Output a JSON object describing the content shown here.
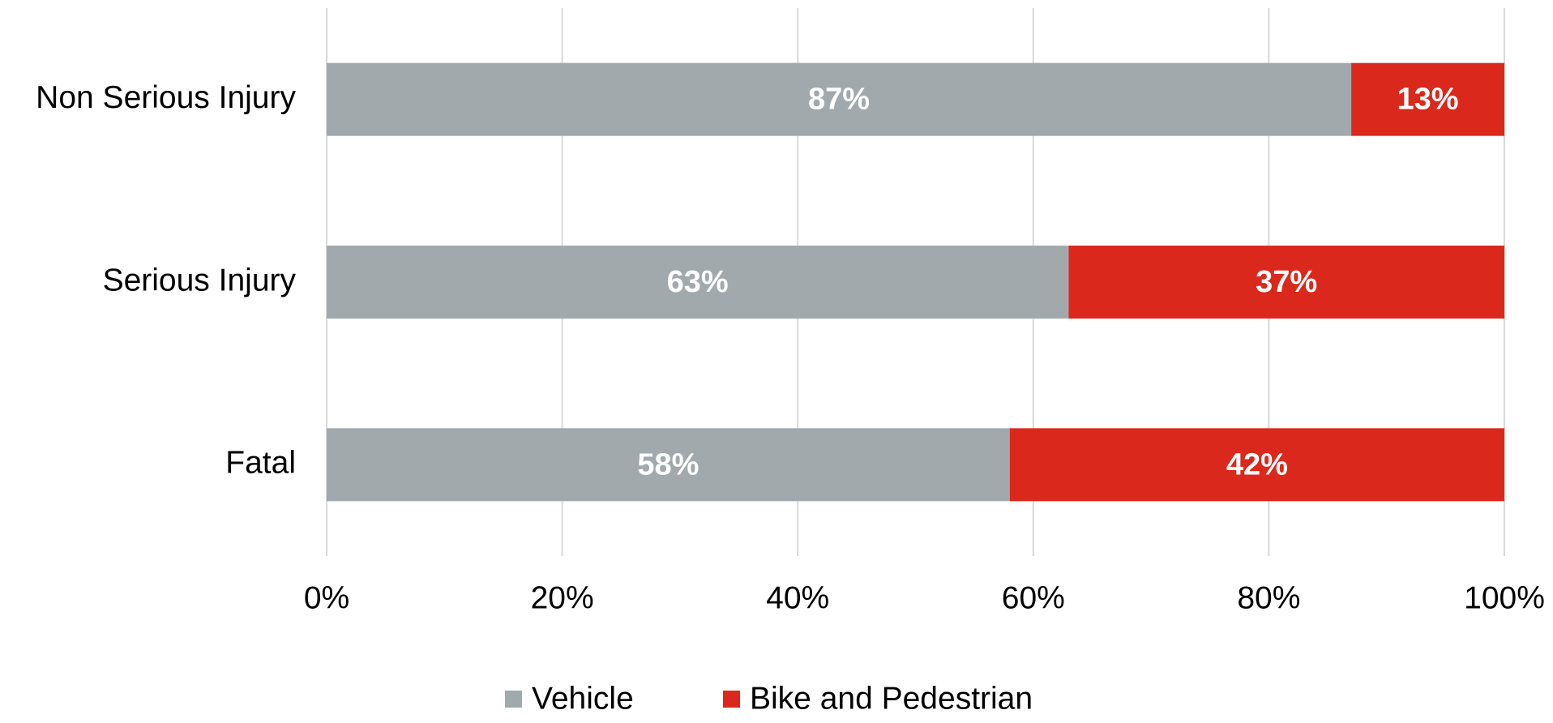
{
  "chart_data": {
    "type": "stacked-barh",
    "categories": [
      "Non Serious Injury",
      "Serious Injury",
      "Fatal"
    ],
    "series": [
      {
        "name": "Vehicle",
        "color": "#a2a9ac",
        "values": [
          87,
          63,
          58
        ],
        "value_labels": [
          "87%",
          "63%",
          "58%"
        ]
      },
      {
        "name": "Bike and Pedestrian",
        "color": "#da291c",
        "values": [
          13,
          37,
          42
        ],
        "value_labels": [
          "13%",
          "37%",
          "42%"
        ]
      }
    ],
    "xlim": [
      0,
      100
    ],
    "xticks": [
      {
        "value": 0,
        "label": "0%"
      },
      {
        "value": 20,
        "label": "20%"
      },
      {
        "value": 40,
        "label": "40%"
      },
      {
        "value": 60,
        "label": "60%"
      },
      {
        "value": 80,
        "label": "80%"
      },
      {
        "value": 100,
        "label": "100%"
      }
    ],
    "grid": true,
    "legend": "bottom"
  }
}
